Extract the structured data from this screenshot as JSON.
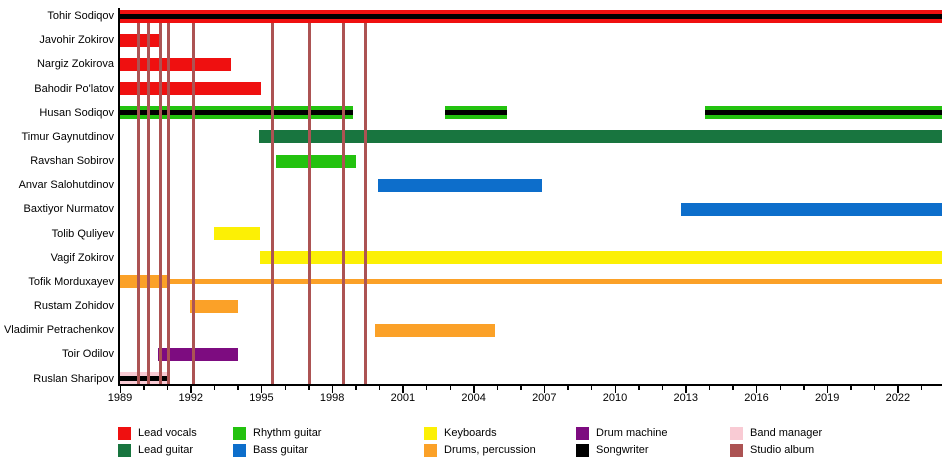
{
  "chart_data": {
    "type": "gantt",
    "description": "Band membership timeline chart",
    "x_axis": {
      "min": 1989,
      "max": 2023.87,
      "major_tick_step": 3,
      "minor_tick_step": 1,
      "tick_labels": [
        "1989",
        "1992",
        "1995",
        "1998",
        "2001",
        "2004",
        "2007",
        "2010",
        "2013",
        "2016",
        "2019",
        "2022"
      ]
    },
    "legend": [
      {
        "id": "lead_vocals",
        "label": "Lead vocals",
        "color": "#ef1010"
      },
      {
        "id": "lead_guitar",
        "label": "Lead guitar",
        "color": "#18753f"
      },
      {
        "id": "rhythm_guitar",
        "label": "Rhythm guitar",
        "color": "#23c20f"
      },
      {
        "id": "bass_guitar",
        "label": "Bass guitar",
        "color": "#0d6ecb"
      },
      {
        "id": "keyboards",
        "label": "Keyboards",
        "color": "#fcf005"
      },
      {
        "id": "drums",
        "label": "Drums, percussion",
        "color": "#fba128"
      },
      {
        "id": "drum_machine",
        "label": "Drum machine",
        "color": "#7d0c80"
      },
      {
        "id": "songwriter",
        "label": "Songwriter",
        "color": "#000000"
      },
      {
        "id": "band_manager",
        "label": "Band manager",
        "color": "#f9cbd4"
      },
      {
        "id": "studio_album",
        "label": "Studio album",
        "color": "#ac5353"
      }
    ],
    "members": [
      {
        "name": "Tohir Sodiqov",
        "bars": [
          {
            "role": "lead_vocals",
            "start": 1989.0,
            "end": 2023.87,
            "songwriter": true
          }
        ]
      },
      {
        "name": "Javohir Zokirov",
        "bars": [
          {
            "role": "lead_vocals",
            "start": 1989.0,
            "end": 1990.65
          }
        ]
      },
      {
        "name": "Nargiz Zokirova",
        "bars": [
          {
            "role": "lead_vocals",
            "start": 1989.0,
            "end": 1993.7
          }
        ]
      },
      {
        "name": "Bahodir Po'latov",
        "bars": [
          {
            "role": "lead_vocals",
            "start": 1989.0,
            "end": 1995.0
          }
        ]
      },
      {
        "name": "Husan Sodiqov",
        "bars": [
          {
            "role": "rhythm_guitar",
            "start": 1989.0,
            "end": 1998.9,
            "songwriter": true
          },
          {
            "role": "rhythm_guitar",
            "start": 2002.8,
            "end": 2005.4,
            "songwriter": true
          },
          {
            "role": "rhythm_guitar",
            "start": 2013.8,
            "end": 2023.87,
            "songwriter": true
          }
        ]
      },
      {
        "name": "Timur Gaynutdinov",
        "bars": [
          {
            "role": "lead_guitar",
            "start": 1994.9,
            "end": 2023.87
          }
        ]
      },
      {
        "name": "Ravshan Sobirov",
        "bars": [
          {
            "role": "rhythm_guitar",
            "start": 1995.6,
            "end": 1999.0
          }
        ]
      },
      {
        "name": "Anvar Salohutdinov",
        "bars": [
          {
            "role": "bass_guitar",
            "start": 1999.95,
            "end": 2006.9
          }
        ]
      },
      {
        "name": "Baxtiyor Nurmatov",
        "bars": [
          {
            "role": "bass_guitar",
            "start": 2012.8,
            "end": 2023.87
          }
        ]
      },
      {
        "name": "Tolib Quliyev",
        "bars": [
          {
            "role": "keyboards",
            "start": 1993.0,
            "end": 1994.95
          }
        ]
      },
      {
        "name": "Vagif Zokirov",
        "bars": [
          {
            "role": "keyboards",
            "start": 1994.95,
            "end": 2023.87
          }
        ]
      },
      {
        "name": "Tofik Morduxayev",
        "bars": [
          {
            "role": "drums",
            "start": 1989.0,
            "end": 1991.05
          },
          {
            "role": "drums",
            "start": 1991.05,
            "end": 2023.87,
            "thin": true
          }
        ]
      },
      {
        "name": "Rustam Zohidov",
        "bars": [
          {
            "role": "drums",
            "start": 1991.95,
            "end": 1994.0
          }
        ]
      },
      {
        "name": "Vladimir Petrachenkov",
        "bars": [
          {
            "role": "drums",
            "start": 1999.8,
            "end": 2004.9
          }
        ]
      },
      {
        "name": "Toir Odilov",
        "bars": [
          {
            "role": "drum_machine",
            "start": 1990.6,
            "end": 1994.0
          }
        ]
      },
      {
        "name": "Ruslan Sharipov",
        "bars": [
          {
            "role": "band_manager",
            "start": 1989.0,
            "end": 1991.05,
            "songwriter": true
          }
        ]
      }
    ],
    "album_lines": {
      "label": "Studio album",
      "years": [
        1989.8,
        1990.2,
        1990.7,
        1991.05,
        1992.1,
        1995.45,
        1997.05,
        1998.5,
        1999.4
      ]
    }
  }
}
